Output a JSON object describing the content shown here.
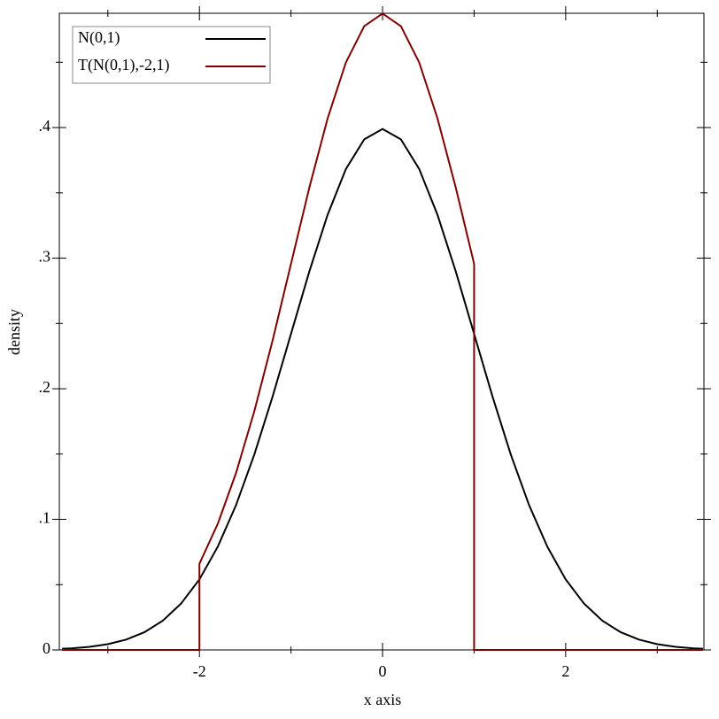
{
  "chart_data": {
    "type": "line",
    "x_label": "x axis",
    "y_label": "density",
    "xlim": [
      -3.53,
      3.51
    ],
    "ylim": [
      0,
      0.4875
    ],
    "xticks": [
      -2,
      0,
      2
    ],
    "x_minor_ticks": [
      -3,
      -1,
      1,
      3
    ],
    "yticks": [
      0,
      {
        "value": 0.1,
        "label": ".1"
      },
      {
        "value": 0.2,
        "label": ".2"
      },
      {
        "value": 0.3,
        "label": ".3"
      },
      {
        "value": 0.4,
        "label": ".4"
      }
    ],
    "y_minor_ticks": [
      0.05,
      0.15,
      0.25,
      0.35,
      0.45
    ],
    "legend": "top-left",
    "series": [
      {
        "name": "N(0,1)",
        "color": "#000000",
        "x": [
          -3.5,
          -3.4,
          -3.2,
          -3.0,
          -2.8,
          -2.6,
          -2.4,
          -2.2,
          -2.0,
          -1.8,
          -1.6,
          -1.4,
          -1.2,
          -1.0,
          -0.8,
          -0.6,
          -0.4,
          -0.2,
          0,
          0.2,
          0.4,
          0.6,
          0.8,
          1.0,
          1.2,
          1.4,
          1.6,
          1.8,
          2.0,
          2.2,
          2.4,
          2.6,
          2.8,
          3.0,
          3.2,
          3.4,
          3.5
        ],
        "values": [
          0.0009,
          0.0012,
          0.0024,
          0.0044,
          0.0079,
          0.0136,
          0.0224,
          0.0355,
          0.054,
          0.079,
          0.1109,
          0.1497,
          0.1942,
          0.242,
          0.2897,
          0.3332,
          0.3683,
          0.391,
          0.3989,
          0.391,
          0.3683,
          0.3332,
          0.2897,
          0.242,
          0.1942,
          0.1497,
          0.1109,
          0.079,
          0.054,
          0.0355,
          0.0224,
          0.0136,
          0.0079,
          0.0044,
          0.0024,
          0.0012,
          0.0009
        ]
      },
      {
        "name": "T(N(0,1),-2,1)",
        "color": "#800000",
        "x": [
          -3.5,
          -2.0,
          -2.0,
          -1.8,
          -1.6,
          -1.4,
          -1.2,
          -1.0,
          -0.8,
          -0.6,
          -0.4,
          -0.2,
          0,
          0.2,
          0.4,
          0.6,
          0.8,
          1.0,
          1.0,
          3.5
        ],
        "values": [
          0,
          0,
          0.066,
          0.0965,
          0.1355,
          0.1829,
          0.2372,
          0.2956,
          0.3539,
          0.407,
          0.4499,
          0.4776,
          0.4873,
          0.4776,
          0.4499,
          0.407,
          0.3539,
          0.2956,
          0,
          0
        ]
      }
    ]
  }
}
